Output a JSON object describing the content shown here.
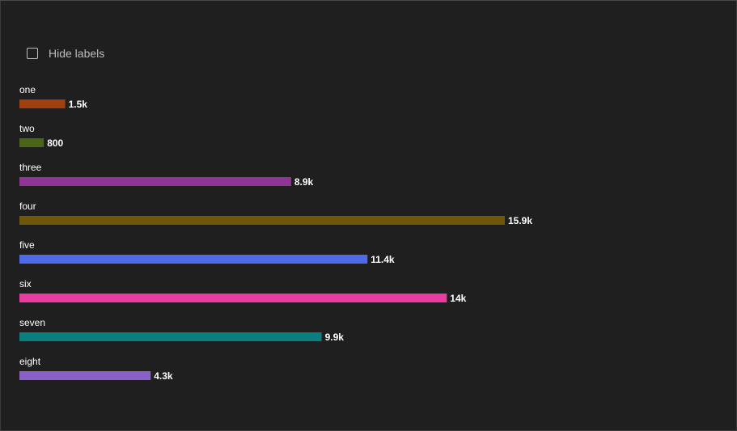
{
  "controls": {
    "hide_labels_label": "Hide labels",
    "hide_labels_checked": false
  },
  "chart_data": {
    "type": "bar",
    "orientation": "horizontal",
    "categories": [
      "one",
      "two",
      "three",
      "four",
      "five",
      "six",
      "seven",
      "eight"
    ],
    "values": [
      1500,
      800,
      8900,
      15900,
      11400,
      14000,
      9900,
      4300
    ],
    "value_labels": [
      "1.5k",
      "800",
      "8.9k",
      "15.9k",
      "11.4k",
      "14k",
      "9.9k",
      "4.3k"
    ],
    "colors": [
      "#a0400f",
      "#4a6418",
      "#8e3596",
      "#6e5708",
      "#4f6ae8",
      "#e83ca0",
      "#0b7f80",
      "#8961c8"
    ],
    "title": "",
    "xlabel": "",
    "ylabel": "",
    "xlim": [
      0,
      15900
    ],
    "grid": false,
    "legend": "none"
  }
}
